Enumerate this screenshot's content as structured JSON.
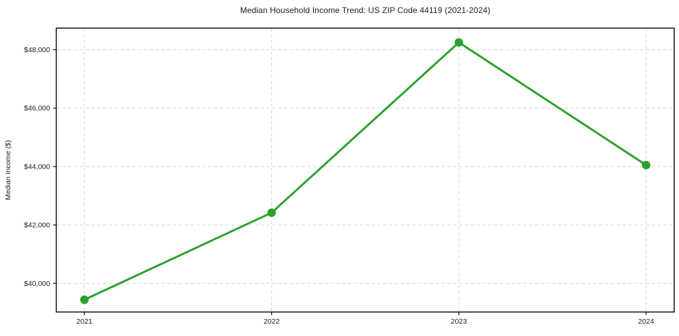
{
  "title": "Median Household Income Trend: US ZIP Code 44119 (2021-2024)",
  "chart_data": {
    "type": "line",
    "title": "Median Household Income Trend: US ZIP Code 44119 (2021-2024)",
    "xlabel": "",
    "ylabel": "Median Income ($)",
    "x": [
      2021,
      2022,
      2023,
      2024
    ],
    "x_tick_labels": [
      "2021",
      "2022",
      "2023",
      "2024"
    ],
    "series": [
      {
        "name": "Median Household Income",
        "values": [
          39440,
          42420,
          48250,
          44050
        ],
        "color": "#2ca02c",
        "marker": "circle"
      }
    ],
    "y_ticks": [
      40000,
      42000,
      44000,
      46000,
      48000
    ],
    "y_tick_labels": [
      "$40,000",
      "$42,000",
      "$44,000",
      "$46,000",
      "$48,000"
    ],
    "xlim": [
      2020.85,
      2024.15
    ],
    "ylim": [
      39020,
      48740
    ],
    "grid": true,
    "grid_style": "dashed",
    "grid_color": "#d6d6d6",
    "spine_color": "#000000",
    "legend": "none"
  }
}
